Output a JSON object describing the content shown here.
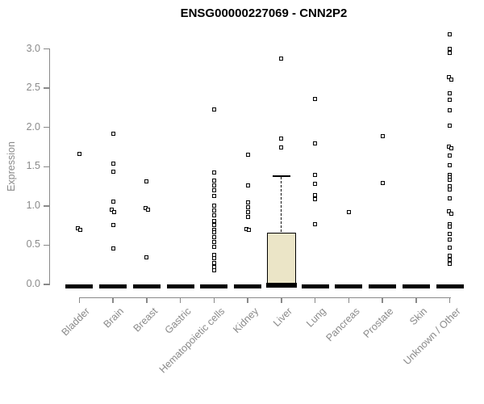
{
  "title": "ENSG00000227069 - CNN2P2",
  "chart_data": {
    "type": "boxplot-scatter",
    "title": "ENSG00000227069 - CNN2P2",
    "xlabel": "",
    "ylabel": "Expression",
    "ylim": [
      0.0,
      3.2
    ],
    "yticks": [
      "0.0",
      "0.5",
      "1.0",
      "1.5",
      "2.0",
      "2.5",
      "3.0"
    ],
    "grid": false,
    "legend": "none",
    "categories": [
      "Bladder",
      "Brain",
      "Breast",
      "Gastric",
      "Hematopoietic cells",
      "Kidney",
      "Liver",
      "Lung",
      "Pancreas",
      "Prostate",
      "Skin",
      "Unknown / Other"
    ],
    "colors": {
      "axis": "#898989",
      "axis_text": "#8a8a8a",
      "marker_stroke": "#000000",
      "marker_fill": "#ffffff",
      "zero_bar": "#000000",
      "box_fill": "#ebe5c7",
      "box_stroke": "#000000",
      "title_color": "#000000"
    },
    "series": [
      {
        "name": "Bladder",
        "median": 0.0,
        "points": [
          1.66,
          {
            "v": 0.72,
            "dx": -1.5
          },
          {
            "v": 0.7,
            "dx": 1.5
          }
        ]
      },
      {
        "name": "Brain",
        "median": 0.0,
        "points": [
          1.92,
          1.54,
          1.44,
          1.06,
          {
            "v": 0.95,
            "dx": -1.5
          },
          {
            "v": 0.92,
            "dx": 1.5
          },
          0.76,
          0.46
        ]
      },
      {
        "name": "Breast",
        "median": 0.0,
        "points": [
          1.31,
          {
            "v": 0.97,
            "dx": -1.5
          },
          {
            "v": 0.95,
            "dx": 1.5
          },
          0.34
        ]
      },
      {
        "name": "Gastric",
        "median": 0.0,
        "points": []
      },
      {
        "name": "Hematopoietic cells",
        "median": 0.0,
        "points": [
          2.23,
          1.43,
          1.32,
          1.26,
          1.2,
          1.13,
          1.0,
          0.94,
          0.88,
          0.81,
          0.76,
          0.7,
          0.66,
          0.6,
          0.54,
          0.48,
          0.38,
          0.33,
          0.27,
          0.22,
          0.18
        ]
      },
      {
        "name": "Kidney",
        "median": 0.0,
        "points": [
          1.65,
          1.26,
          1.05,
          0.98,
          0.92,
          0.86,
          {
            "v": 0.71,
            "dx": -1.5
          },
          {
            "v": 0.69,
            "dx": 1.5
          }
        ]
      },
      {
        "name": "Liver",
        "median": 0.0,
        "points": [
          2.88,
          1.86,
          1.74
        ]
      },
      {
        "name": "Lung",
        "median": 0.0,
        "points": [
          2.36,
          1.8,
          1.4,
          1.28,
          1.14,
          1.09,
          0.77
        ]
      },
      {
        "name": "Pancreas",
        "median": 0.0,
        "points": [
          0.92
        ]
      },
      {
        "name": "Prostate",
        "median": 0.0,
        "points": [
          1.89,
          1.29
        ]
      },
      {
        "name": "Skin",
        "median": 0.0,
        "points": []
      },
      {
        "name": "Unknown / Other",
        "median": 0.0,
        "points": [
          3.19,
          3.0,
          2.95,
          {
            "v": 2.64,
            "dx": -1.5
          },
          {
            "v": 2.61,
            "dx": 1.5
          },
          2.44,
          2.35,
          2.22,
          2.02,
          {
            "v": 1.76,
            "dx": -1.5
          },
          {
            "v": 1.73,
            "dx": 1.5
          },
          1.64,
          1.52,
          1.4,
          1.36,
          1.33,
          1.25,
          1.21,
          1.1,
          {
            "v": 0.93,
            "dx": -1.5
          },
          {
            "v": 0.9,
            "dx": 1.5
          },
          0.77,
          0.74,
          0.64,
          0.57,
          0.47,
          0.37,
          0.31,
          0.26
        ]
      }
    ],
    "box": {
      "category": "Liver",
      "q1": 0.0,
      "median": 0.0,
      "q3": 0.66,
      "whisker_low": 0.0,
      "whisker_high": 1.38
    }
  }
}
